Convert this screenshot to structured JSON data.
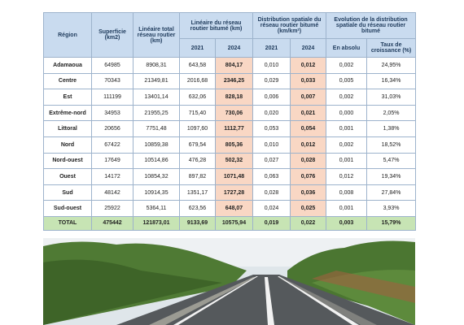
{
  "table": {
    "header": {
      "region": "Région",
      "area": "Superficie (km2)",
      "total_network": "Linéaire total réseau routier (km)",
      "paved_length": "Linéaire du réseau routier bitumé (km)",
      "distribution": "Distribution spatiale du réseau routier bitumé (km/km²)",
      "evolution": "Evolution de la distribution spatiale du réseau routier bitumé",
      "year_2021": "2021",
      "year_2024": "2024",
      "dist_2021": "2021",
      "dist_2024": "2024",
      "absolute": "En absolu",
      "growth_rate": "Taux de croissance (%)"
    },
    "rows": [
      [
        "Adamaoua",
        "64985",
        "8908,31",
        "643,58",
        "804,17",
        "0,010",
        "0,012",
        "0,002",
        "24,95%"
      ],
      [
        "Centre",
        "70343",
        "21349,81",
        "2016,68",
        "2346,25",
        "0,029",
        "0,033",
        "0,005",
        "16,34%"
      ],
      [
        "Est",
        "111199",
        "13401,14",
        "632,06",
        "828,18",
        "0,006",
        "0,007",
        "0,002",
        "31,03%"
      ],
      [
        "Extrême-nord",
        "34953",
        "21955,25",
        "715,40",
        "730,06",
        "0,020",
        "0,021",
        "0,000",
        "2,05%"
      ],
      [
        "Littoral",
        "20656",
        "7751,48",
        "1097,60",
        "1112,77",
        "0,053",
        "0,054",
        "0,001",
        "1,38%"
      ],
      [
        "Nord",
        "67422",
        "10859,38",
        "679,54",
        "805,36",
        "0,010",
        "0,012",
        "0,002",
        "18,52%"
      ],
      [
        "Nord-ouest",
        "17649",
        "10514,86",
        "476,28",
        "502,32",
        "0,027",
        "0,028",
        "0,001",
        "5,47%"
      ],
      [
        "Ouest",
        "14172",
        "10854,32",
        "897,82",
        "1071,48",
        "0,063",
        "0,076",
        "0,012",
        "19,34%"
      ],
      [
        "Sud",
        "48142",
        "10914,35",
        "1351,17",
        "1727,28",
        "0,028",
        "0,036",
        "0,008",
        "27,84%"
      ],
      [
        "Sud-ouest",
        "25922",
        "5364,11",
        "623,56",
        "648,07",
        "0,024",
        "0,025",
        "0,001",
        "3,93%"
      ]
    ],
    "total": [
      "TOTAL",
      "475442",
      "121873,01",
      "9133,69",
      "10575,94",
      "0,019",
      "0,022",
      "0,003",
      "15,79%"
    ]
  }
}
